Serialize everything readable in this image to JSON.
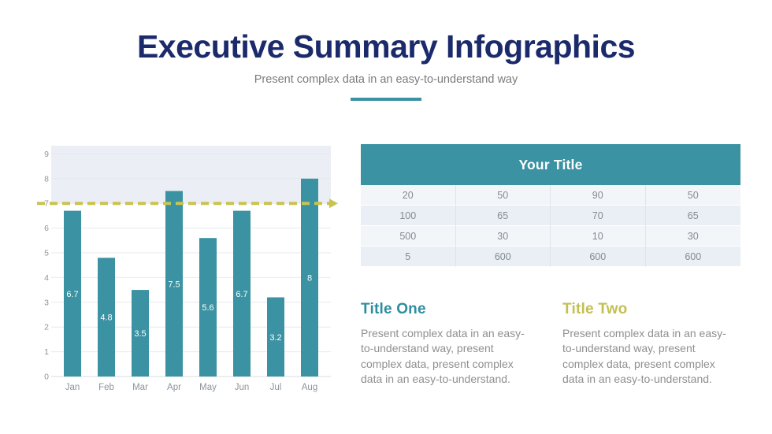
{
  "header": {
    "title": "Executive Summary Infographics",
    "subtitle": "Present complex data in an easy-to-understand way"
  },
  "colors": {
    "title_navy": "#1b2a6b",
    "teal": "#3a92a2",
    "olive": "#c9c44f",
    "band_fill": "#ebeff5",
    "grid_gray": "#e6e9ed",
    "axis_text": "#8d949b",
    "cell_text": "#838b92",
    "body_text": "#8f8f8f"
  },
  "chart_data": [
    {
      "type": "bar",
      "categories": [
        "Jan",
        "Feb",
        "Mar",
        "Apr",
        "May",
        "Jun",
        "Jul",
        "Aug"
      ],
      "values": [
        6.7,
        4.8,
        3.5,
        7.5,
        5.6,
        6.7,
        3.2,
        8
      ],
      "data_labels": [
        "6.7",
        "4.8",
        "3.5",
        "7.5",
        "5.6",
        "6.7",
        "3.2",
        "8"
      ],
      "title": "",
      "xlabel": "",
      "ylabel": "",
      "ylim": [
        0,
        9
      ],
      "y_ticks": [
        0,
        1,
        2,
        3,
        4,
        5,
        6,
        7,
        8,
        9
      ],
      "grid": true,
      "legend": false,
      "bar_color": "#3a92a2",
      "value_label_color": "#ffffff",
      "threshold_line": 7,
      "threshold_color": "#c9c44f",
      "threshold_style": "dashed",
      "threshold_arrow_icon": "arrow-right",
      "shaded_band": [
        7,
        9
      ],
      "band_color": "#ebeff5"
    },
    {
      "type": "table",
      "title": "Your Title",
      "rows": [
        [
          "20",
          "50",
          "90",
          "50"
        ],
        [
          "100",
          "65",
          "70",
          "65"
        ],
        [
          "500",
          "30",
          "10",
          "30"
        ],
        [
          "5",
          "600",
          "600",
          "600"
        ]
      ]
    }
  ],
  "sections": [
    {
      "title": "Title One",
      "color": "#2e8da0",
      "body": "Present complex data in an easy-to-understand way, present complex data, present complex data in an easy-to-understand."
    },
    {
      "title": "Title Two",
      "color": "#c3bf52",
      "body": "Present complex data in an easy-to-understand way, present complex data, present complex data in an easy-to-understand."
    }
  ]
}
